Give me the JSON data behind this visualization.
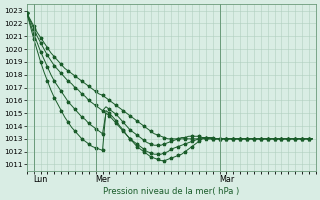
{
  "xlabel": "Pression niveau de la mer( hPa )",
  "ylim": [
    1010.5,
    1023.5
  ],
  "xlim": [
    0,
    84
  ],
  "yticks": [
    1011,
    1012,
    1013,
    1014,
    1015,
    1016,
    1017,
    1018,
    1019,
    1020,
    1021,
    1022,
    1023
  ],
  "xtick_positions": [
    2,
    20,
    56
  ],
  "xtick_labels": [
    "Lun",
    "Mer",
    "Mar"
  ],
  "bg_color": "#d9ede4",
  "grid_color": "#b0cfbf",
  "line_color": "#1a5c2a",
  "vline_color": "#6a9a7a",
  "series": [
    [
      1022.8,
      1022.3,
      1021.8,
      1021.3,
      1020.9,
      1020.5,
      1020.1,
      1019.7,
      1019.4,
      1019.1,
      1018.8,
      1018.5,
      1018.3,
      1018.1,
      1017.9,
      1017.7,
      1017.5,
      1017.3,
      1017.1,
      1016.9,
      1016.7,
      1016.5,
      1016.4,
      1016.2,
      1016.0,
      1015.8,
      1015.6,
      1015.4,
      1015.2,
      1015.0,
      1014.8,
      1014.6,
      1014.4,
      1014.2,
      1014.0,
      1013.8,
      1013.6,
      1013.4,
      1013.3,
      1013.2,
      1013.1,
      1013.0,
      1013.0,
      1013.0,
      1013.0,
      1013.0,
      1013.0,
      1013.0,
      1013.0,
      1013.0,
      1013.0,
      1013.0,
      1013.0,
      1013.0,
      1013.0,
      1013.0,
      1013.0,
      1013.0,
      1013.0,
      1013.0,
      1013.0,
      1013.0,
      1013.0,
      1013.0,
      1013.0,
      1013.0,
      1013.0,
      1013.0,
      1013.0,
      1013.0,
      1013.0,
      1013.0,
      1013.0,
      1013.0,
      1013.0,
      1013.0,
      1013.0,
      1013.0,
      1013.0,
      1013.0,
      1013.0,
      1013.0,
      1013.0,
      1013.0
    ],
    [
      1022.8,
      1022.2,
      1021.6,
      1021.0,
      1020.5,
      1020.0,
      1019.5,
      1019.1,
      1018.7,
      1018.4,
      1018.1,
      1017.8,
      1017.5,
      1017.3,
      1017.0,
      1016.8,
      1016.5,
      1016.3,
      1016.0,
      1015.8,
      1015.6,
      1015.4,
      1015.2,
      1015.5,
      1015.3,
      1015.1,
      1014.9,
      1014.6,
      1014.3,
      1014.0,
      1013.7,
      1013.5,
      1013.3,
      1013.1,
      1012.9,
      1012.7,
      1012.6,
      1012.5,
      1012.5,
      1012.5,
      1012.6,
      1012.7,
      1012.8,
      1012.9,
      1013.0,
      1013.1,
      1013.1,
      1013.2,
      1013.2,
      1013.2,
      1013.2,
      1013.1,
      1013.1,
      1013.0,
      1013.0,
      1013.0,
      1013.0,
      1013.0,
      1013.0,
      1013.0,
      1013.0,
      1013.0,
      1013.0,
      1013.0,
      1013.0,
      1013.0,
      1013.0,
      1013.0,
      1013.0,
      1013.0,
      1013.0,
      1013.0,
      1013.0,
      1013.0,
      1013.0,
      1013.0,
      1013.0,
      1013.0,
      1013.0,
      1013.0,
      1013.0,
      1013.0,
      1013.0,
      1013.0
    ],
    [
      1022.8,
      1022.0,
      1021.2,
      1020.5,
      1019.8,
      1019.2,
      1018.6,
      1018.0,
      1017.5,
      1017.1,
      1016.7,
      1016.3,
      1015.9,
      1015.6,
      1015.3,
      1015.0,
      1014.7,
      1014.5,
      1014.2,
      1014.0,
      1013.8,
      1013.6,
      1013.4,
      1015.0,
      1014.8,
      1014.5,
      1014.2,
      1013.9,
      1013.6,
      1013.3,
      1013.0,
      1012.8,
      1012.6,
      1012.4,
      1012.2,
      1012.0,
      1011.9,
      1011.8,
      1011.8,
      1011.8,
      1011.9,
      1012.0,
      1012.2,
      1012.3,
      1012.4,
      1012.5,
      1012.6,
      1012.7,
      1012.8,
      1012.9,
      1013.0,
      1013.1,
      1013.1,
      1013.1,
      1013.0,
      1013.0,
      1013.0,
      1013.0,
      1013.0,
      1013.0,
      1013.0,
      1013.0,
      1013.0,
      1013.0,
      1013.0,
      1013.0,
      1013.0,
      1013.0,
      1013.0,
      1013.0,
      1013.0,
      1013.0,
      1013.0,
      1013.0,
      1013.0,
      1013.0,
      1013.0,
      1013.0,
      1013.0,
      1013.0,
      1013.0,
      1013.0,
      1013.0,
      1013.0
    ],
    [
      1022.8,
      1021.8,
      1020.8,
      1019.9,
      1019.0,
      1018.2,
      1017.5,
      1016.8,
      1016.2,
      1015.7,
      1015.2,
      1014.7,
      1014.3,
      1013.9,
      1013.6,
      1013.3,
      1013.0,
      1012.8,
      1012.6,
      1012.4,
      1012.3,
      1012.2,
      1012.1,
      1015.2,
      1015.0,
      1014.7,
      1014.4,
      1014.0,
      1013.7,
      1013.3,
      1013.0,
      1012.7,
      1012.4,
      1012.2,
      1012.0,
      1011.8,
      1011.6,
      1011.5,
      1011.4,
      1011.3,
      1011.3,
      1011.4,
      1011.5,
      1011.6,
      1011.7,
      1011.8,
      1012.0,
      1012.2,
      1012.4,
      1012.6,
      1012.8,
      1013.0,
      1013.1,
      1013.1,
      1013.1,
      1013.0,
      1013.0,
      1013.0,
      1013.0,
      1013.0,
      1013.0,
      1013.0,
      1013.0,
      1013.0,
      1013.0,
      1013.0,
      1013.0,
      1013.0,
      1013.0,
      1013.0,
      1013.0,
      1013.0,
      1013.0,
      1013.0,
      1013.0,
      1013.0,
      1013.0,
      1013.0,
      1013.0,
      1013.0,
      1013.0,
      1013.0,
      1013.0,
      1013.0
    ]
  ],
  "marker": "*",
  "marker_size": 2.5,
  "linewidth": 0.7,
  "vline_positions": [
    2,
    20,
    56
  ]
}
